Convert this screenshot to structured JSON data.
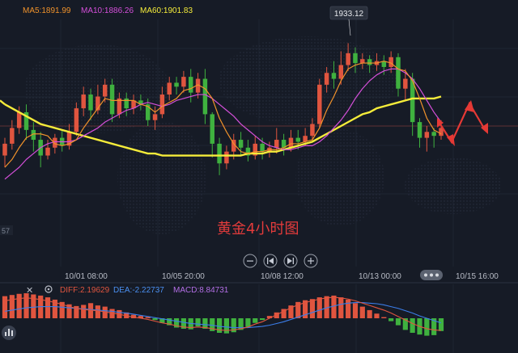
{
  "legend": {
    "ma5": "MA5:1891.99",
    "ma10": "MA10:1886.26",
    "ma60": "MA60:1901.83"
  },
  "peak_label": "1933.12",
  "watermark": "黄金4小时图",
  "left_edge_label": "57",
  "macd_legend": {
    "diff": "DIFF:2.19629",
    "dea": "DEA:-2.22737",
    "macd": "MACD:8.84731"
  },
  "colors": {
    "up": "#e0553f",
    "down": "#3fb13f",
    "ma5": "#f0922b",
    "ma10": "#d44fd9",
    "ma60": "#f5ec3a",
    "diff": "#e0553f",
    "dea": "#3b7de8",
    "arrow": "#e53935"
  },
  "controls": [
    "zoom-out-icon",
    "skip-back-icon",
    "skip-forward-icon",
    "zoom-in-icon"
  ],
  "chart_data": {
    "type": "candlestick",
    "x_ticks": [
      "10/01 08:00",
      "10/05 20:00",
      "10/08 12:00",
      "10/13 00:00",
      "10/15 16:00"
    ],
    "y_ref_line": 1891,
    "candles": [
      [
        1876,
        1882,
        1870,
        1885
      ],
      [
        1882,
        1890,
        1879,
        1894
      ],
      [
        1890,
        1898,
        1887,
        1901
      ],
      [
        1898,
        1889,
        1884,
        1902
      ],
      [
        1889,
        1884,
        1878,
        1893
      ],
      [
        1884,
        1876,
        1870,
        1888
      ],
      [
        1876,
        1880,
        1874,
        1884
      ],
      [
        1880,
        1885,
        1877,
        1887
      ],
      [
        1885,
        1881,
        1878,
        1889
      ],
      [
        1881,
        1888,
        1879,
        1892
      ],
      [
        1888,
        1900,
        1886,
        1903
      ],
      [
        1900,
        1907,
        1896,
        1911
      ],
      [
        1907,
        1899,
        1894,
        1910
      ],
      [
        1899,
        1906,
        1897,
        1912
      ],
      [
        1906,
        1912,
        1903,
        1915
      ],
      [
        1912,
        1897,
        1893,
        1915
      ],
      [
        1897,
        1905,
        1895,
        1908
      ],
      [
        1905,
        1900,
        1896,
        1908
      ],
      [
        1900,
        1904,
        1897,
        1907
      ],
      [
        1904,
        1902,
        1899,
        1907
      ],
      [
        1902,
        1894,
        1891,
        1905
      ],
      [
        1894,
        1897,
        1889,
        1901
      ],
      [
        1897,
        1907,
        1895,
        1911
      ],
      [
        1907,
        1913,
        1904,
        1916
      ],
      [
        1913,
        1911,
        1907,
        1916
      ],
      [
        1911,
        1916,
        1908,
        1919
      ],
      [
        1916,
        1908,
        1903,
        1920
      ],
      [
        1908,
        1915,
        1905,
        1918
      ],
      [
        1915,
        1897,
        1892,
        1920
      ],
      [
        1897,
        1882,
        1875,
        1898
      ],
      [
        1882,
        1872,
        1866,
        1885
      ],
      [
        1872,
        1878,
        1869,
        1881
      ],
      [
        1878,
        1884,
        1874,
        1887
      ],
      [
        1884,
        1880,
        1876,
        1888
      ],
      [
        1880,
        1876,
        1873,
        1884
      ],
      [
        1876,
        1882,
        1874,
        1886
      ],
      [
        1882,
        1878,
        1874,
        1885
      ],
      [
        1878,
        1880,
        1875,
        1883
      ],
      [
        1880,
        1884,
        1877,
        1890
      ],
      [
        1884,
        1880,
        1876,
        1887
      ],
      [
        1880,
        1885,
        1878,
        1889
      ],
      [
        1885,
        1883,
        1879,
        1889
      ],
      [
        1883,
        1886,
        1881,
        1890
      ],
      [
        1886,
        1892,
        1883,
        1895
      ],
      [
        1892,
        1912,
        1890,
        1915
      ],
      [
        1912,
        1918,
        1908,
        1921
      ],
      [
        1918,
        1915,
        1910,
        1924
      ],
      [
        1915,
        1922,
        1912,
        1929
      ],
      [
        1922,
        1928,
        1919,
        1933.12
      ],
      [
        1928,
        1923,
        1918,
        1931
      ],
      [
        1923,
        1925,
        1920,
        1928
      ],
      [
        1925,
        1922,
        1918,
        1927
      ],
      [
        1922,
        1924,
        1919,
        1928
      ],
      [
        1924,
        1921,
        1917,
        1927
      ],
      [
        1921,
        1926,
        1918,
        1929
      ],
      [
        1926,
        1910,
        1906,
        1928
      ],
      [
        1910,
        1915,
        1904,
        1920
      ],
      [
        1915,
        1893,
        1886,
        1918
      ],
      [
        1893,
        1885,
        1880,
        1895
      ],
      [
        1885,
        1888,
        1878,
        1891
      ],
      [
        1888,
        1886,
        1880,
        1890
      ],
      [
        1886,
        1890,
        1884,
        1894
      ]
    ],
    "ma5": [
      1870,
      1874,
      1880,
      1885,
      1887,
      1887,
      1886,
      1882,
      1881,
      1882,
      1884,
      1890,
      1895,
      1900,
      1905,
      1904,
      1904,
      1904,
      1904,
      1902,
      1901,
      1898,
      1901,
      1903,
      1905,
      1909,
      1910,
      1912,
      1910,
      1905,
      1895,
      1888,
      1882,
      1878,
      1877,
      1878,
      1878,
      1879,
      1879,
      1880,
      1882,
      1882,
      1883,
      1884,
      1890,
      1899,
      1906,
      1914,
      1920,
      1922,
      1923,
      1923,
      1923,
      1924,
      1923,
      1920,
      1919,
      1914,
      1905,
      1895,
      1889,
      1887
    ],
    "ma10": [
      1864,
      1867,
      1870,
      1874,
      1877,
      1880,
      1882,
      1883,
      1883,
      1883,
      1884,
      1886,
      1888,
      1890,
      1893,
      1895,
      1897,
      1899,
      1900,
      1902,
      1903,
      1902,
      1901,
      1902,
      1904,
      1905,
      1906,
      1907,
      1907,
      1905,
      1902,
      1899,
      1896,
      1892,
      1889,
      1886,
      1883,
      1881,
      1880,
      1879,
      1879,
      1880,
      1881,
      1881,
      1883,
      1886,
      1890,
      1894,
      1899,
      1905,
      1910,
      1914,
      1917,
      1919,
      1920,
      1920,
      1918,
      1915,
      1910,
      1904,
      1898,
      1893
    ],
    "ma60": [
      1902,
      1900,
      1898,
      1896,
      1894,
      1892,
      1891,
      1890,
      1889,
      1888,
      1887,
      1886,
      1885,
      1884,
      1883,
      1882,
      1881,
      1880,
      1879,
      1878,
      1877,
      1877,
      1876,
      1876,
      1876,
      1876,
      1876,
      1876,
      1876,
      1876,
      1876,
      1876,
      1876,
      1876,
      1877,
      1877,
      1877,
      1878,
      1878,
      1879,
      1880,
      1881,
      1882,
      1883,
      1885,
      1887,
      1889,
      1891,
      1893,
      1895,
      1897,
      1898,
      1900,
      1901,
      1902,
      1903,
      1904,
      1905,
      1905,
      1905,
      1905,
      1906
    ],
    "macd_hist": [
      3.8,
      4.0,
      4.2,
      4.3,
      4.1,
      3.9,
      3.6,
      3.2,
      2.8,
      2.4,
      2.1,
      2.3,
      2.6,
      2.2,
      2.0,
      1.6,
      1.4,
      1.0,
      0.6,
      0.4,
      0.2,
      -0.3,
      -0.8,
      -1.2,
      -1.6,
      -1.8,
      -1.9,
      -1.4,
      -1.8,
      -2.2,
      -2.5,
      -2.6,
      -2.4,
      -2.0,
      -1.5,
      -0.8,
      -0.3,
      0.4,
      1.0,
      1.6,
      2.2,
      2.8,
      3.1,
      3.3,
      3.6,
      3.8,
      3.9,
      3.6,
      3.2,
      2.6,
      2.0,
      1.4,
      0.8,
      0.2,
      -0.5,
      -1.2,
      -2.0,
      -2.5,
      -2.8,
      -3.0,
      -2.9,
      -2.2
    ],
    "diff": [
      3.0,
      3.2,
      3.4,
      3.5,
      3.4,
      3.2,
      3.0,
      2.7,
      2.4,
      2.0,
      1.7,
      1.5,
      1.4,
      1.3,
      1.1,
      0.9,
      0.7,
      0.4,
      0.2,
      0.0,
      -0.2,
      -0.5,
      -0.8,
      -1.0,
      -1.3,
      -1.5,
      -1.6,
      -1.5,
      -1.6,
      -1.8,
      -2.0,
      -2.1,
      -2.0,
      -1.8,
      -1.5,
      -1.0,
      -0.6,
      0.0,
      0.6,
      1.2,
      1.8,
      2.3,
      2.7,
      3.0,
      3.3,
      3.5,
      3.6,
      3.5,
      3.3,
      3.0,
      2.6,
      2.2,
      1.8,
      1.4,
      0.9,
      0.3,
      -0.3,
      -0.9,
      -1.4,
      -1.8,
      -2.0,
      -2.1
    ],
    "dea": [
      1.2,
      1.4,
      1.6,
      1.8,
      1.9,
      2.0,
      2.0,
      2.0,
      1.9,
      1.8,
      1.7,
      1.6,
      1.5,
      1.4,
      1.3,
      1.2,
      1.0,
      0.9,
      0.7,
      0.5,
      0.3,
      0.1,
      -0.1,
      -0.3,
      -0.5,
      -0.7,
      -0.9,
      -1.0,
      -1.1,
      -1.2,
      -1.4,
      -1.5,
      -1.6,
      -1.6,
      -1.6,
      -1.5,
      -1.4,
      -1.2,
      -0.9,
      -0.6,
      -0.2,
      0.2,
      0.6,
      1.0,
      1.4,
      1.8,
      2.1,
      2.4,
      2.6,
      2.7,
      2.7,
      2.6,
      2.5,
      2.3,
      2.0,
      1.7,
      1.3,
      0.9,
      0.4,
      0.0,
      -0.4,
      -0.8
    ]
  }
}
